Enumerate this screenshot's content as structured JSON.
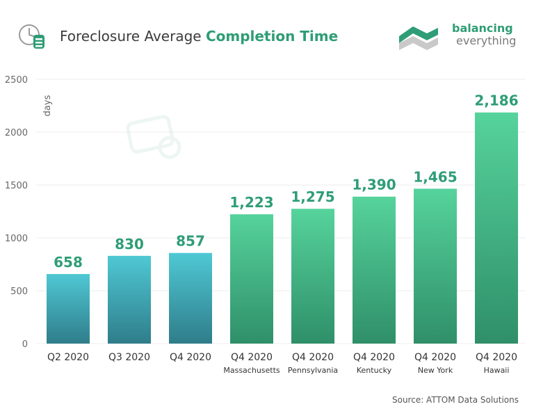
{
  "header": {
    "title_part1": "Foreclosure Average ",
    "title_part2": "Completion Time",
    "brand_line1": "balancing",
    "brand_line2": "everything"
  },
  "footer": {
    "source": "Source: ATTOM Data Solutions"
  },
  "icons": {
    "title_icon": "clock-database-icon",
    "brand_logo": "balancing-everything-logo-icon"
  },
  "colors": {
    "accent": "#2f9d76",
    "teal_top": "#4fc8d4",
    "teal_bottom": "#2f7d8a",
    "green_top": "#56d39c",
    "green_bottom": "#2f8f69",
    "grid": "#eeeeee",
    "axis_text": "#666666"
  },
  "chart_data": {
    "type": "bar",
    "categories": [
      "Q2 2020",
      "Q3 2020",
      "Q4 2020",
      "Q4 2020\nMassachusetts",
      "Q4 2020\nPennsylvania",
      "Q4 2020\nKentucky",
      "Q4 2020\nNew York",
      "Q4 2020\nHawaii"
    ],
    "values": [
      658,
      830,
      857,
      1223,
      1275,
      1390,
      1465,
      2186
    ],
    "value_labels": [
      "658",
      "830",
      "857",
      "1,223",
      "1,275",
      "1,390",
      "1,465",
      "2,186"
    ],
    "bar_colors": [
      "teal",
      "teal",
      "teal",
      "green",
      "green",
      "green",
      "green",
      "green"
    ],
    "title": "Foreclosure Average Completion Time",
    "xlabel": "",
    "ylabel": "days",
    "ylim": [
      0,
      2500
    ],
    "yticks": [
      0,
      500,
      1000,
      1500,
      2000,
      2500
    ],
    "grid": true,
    "legend": "none"
  }
}
